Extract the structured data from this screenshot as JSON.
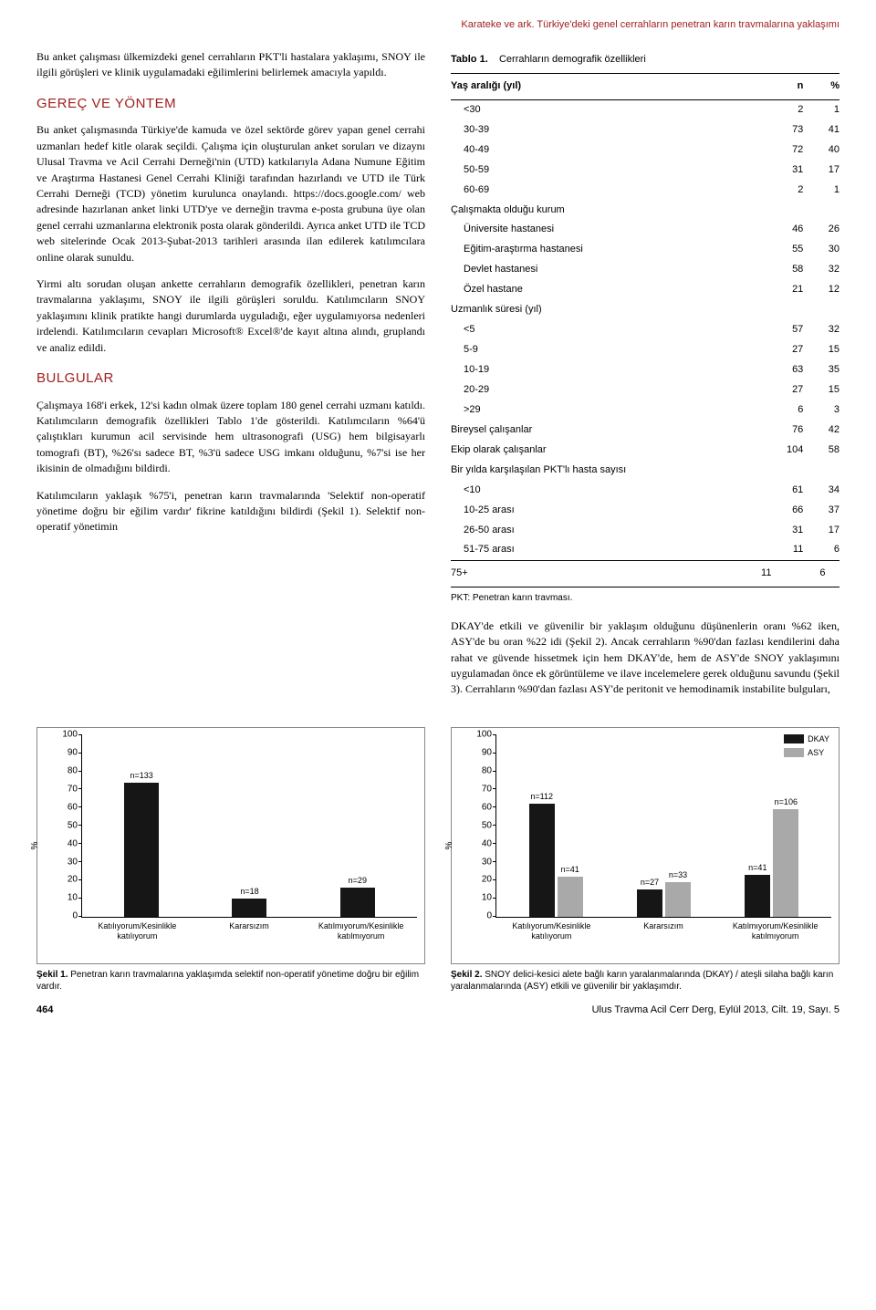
{
  "running_head": "Karateke ve ark. Türkiye'deki genel cerrahların penetran karın travmalarına yaklaşımı",
  "left": {
    "p1": "Bu anket çalışması ülkemizdeki genel cerrahların PKT'li hastalara yaklaşımı, SNOY ile ilgili görüşleri ve klinik uygulamadaki eğilimlerini belirlemek amacıyla yapıldı.",
    "h1": "GEREÇ VE YÖNTEM",
    "p2": "Bu anket çalışmasında Türkiye'de kamuda ve özel sektörde görev yapan genel cerrahi uzmanları hedef kitle olarak seçildi. Çalışma için oluşturulan anket soruları ve dizaynı Ulusal Travma ve Acil Cerrahi Derneği'nin (UTD) katkılarıyla Adana Numune Eğitim ve Araştırma Hastanesi Genel Cerrahi Kliniği tarafından hazırlandı ve UTD ile Türk Cerrahi Derneği (TCD) yönetim kurulunca onaylandı. https://docs.google.com/ web adresinde hazırlanan anket linki UTD'ye ve derneğin travma e-posta grubuna üye olan genel cerrahi uzmanlarına elektronik posta olarak gönderildi. Ayrıca anket UTD ile TCD web sitelerinde Ocak 2013-Şubat-2013 tarihleri arasında ilan edilerek katılımcılara online olarak sunuldu.",
    "p3": "Yirmi altı sorudan oluşan ankette cerrahların demografik özellikleri, penetran karın travmalarına yaklaşımı, SNOY ile ilgili görüşleri soruldu. Katılımcıların SNOY yaklaşımını klinik pratikte hangi durumlarda uyguladığı, eğer uygulamıyorsa nedenleri irdelendi. Katılımcıların cevapları Microsoft® Excel®'de kayıt altına alındı, gruplandı ve analiz edildi.",
    "h2": "BULGULAR",
    "p4": "Çalışmaya 168'i erkek, 12'si kadın olmak üzere toplam 180 genel cerrahi uzmanı katıldı. Katılımcıların demografik özellikleri Tablo 1'de gösterildi. Katılımcıların %64'ü çalıştıkları kurumun acil servisinde hem ultrasonografi (USG) hem bilgisayarlı tomografi (BT), %26'sı sadece BT, %3'ü sadece USG imkanı olduğunu, %7'si ise her ikisinin de olmadığını bildirdi.",
    "p5": "Katılımcıların yaklaşık %75'i, penetran karın travmalarında 'Selektif non-operatif yönetime doğru bir eğilim vardır' fikrine katıldığını bildirdi (Şekil 1). Selektif non-operatif yönetimin"
  },
  "table": {
    "label": "Tablo 1.",
    "title": "Cerrahların demografik özellikleri",
    "head_c1": "Yaş aralığı (yıl)",
    "head_c2": "n",
    "head_c3": "%",
    "rows": [
      {
        "label": "<30",
        "indent": true,
        "n": "2",
        "p": "1"
      },
      {
        "label": "30-39",
        "indent": true,
        "n": "73",
        "p": "41"
      },
      {
        "label": "40-49",
        "indent": true,
        "n": "72",
        "p": "40"
      },
      {
        "label": "50-59",
        "indent": true,
        "n": "31",
        "p": "17"
      },
      {
        "label": "60-69",
        "indent": true,
        "n": "2",
        "p": "1"
      },
      {
        "label": "Çalışmakta olduğu kurum",
        "indent": false,
        "n": "",
        "p": ""
      },
      {
        "label": "Üniversite hastanesi",
        "indent": true,
        "n": "46",
        "p": "26"
      },
      {
        "label": "Eğitim-araştırma hastanesi",
        "indent": true,
        "n": "55",
        "p": "30"
      },
      {
        "label": "Devlet hastanesi",
        "indent": true,
        "n": "58",
        "p": "32"
      },
      {
        "label": "Özel hastane",
        "indent": true,
        "n": "21",
        "p": "12"
      },
      {
        "label": "Uzmanlık süresi (yıl)",
        "indent": false,
        "n": "",
        "p": ""
      },
      {
        "label": "<5",
        "indent": true,
        "n": "57",
        "p": "32"
      },
      {
        "label": "5-9",
        "indent": true,
        "n": "27",
        "p": "15"
      },
      {
        "label": "10-19",
        "indent": true,
        "n": "63",
        "p": "35"
      },
      {
        "label": "20-29",
        "indent": true,
        "n": "27",
        "p": "15"
      },
      {
        "label": ">29",
        "indent": true,
        "n": "6",
        "p": "3"
      },
      {
        "label": "Bireysel çalışanlar",
        "indent": false,
        "n": "76",
        "p": "42"
      },
      {
        "label": "Ekip olarak çalışanlar",
        "indent": false,
        "n": "104",
        "p": "58"
      },
      {
        "label": "Bir yılda karşılaşılan PKT'lı hasta sayısı",
        "indent": false,
        "n": "",
        "p": ""
      },
      {
        "label": "<10",
        "indent": true,
        "n": "61",
        "p": "34"
      },
      {
        "label": "10-25 arası",
        "indent": true,
        "n": "66",
        "p": "37"
      },
      {
        "label": "26-50 arası",
        "indent": true,
        "n": "31",
        "p": "17"
      },
      {
        "label": "51-75 arası",
        "indent": true,
        "n": "11",
        "p": "6"
      }
    ],
    "last_row": {
      "label": "75+",
      "n": "11",
      "p": "6"
    },
    "foot": "PKT: Penetran karın travması."
  },
  "right_para": "DKAY'de etkili ve güvenilir bir yaklaşım olduğunu düşünenlerin oranı %62 iken, ASY'de bu oran %22 idi (Şekil 2). Ancak cerrahların %90'dan fazlası kendilerini daha rahat ve güvende hissetmek için hem DKAY'de, hem de ASY'de SNOY yaklaşımını uygulamadan önce ek görüntüleme ve ilave incelemelere gerek olduğunu savundu (Şekil 3). Cerrahların %90'dan fazlası ASY'de peritonit ve hemodinamik instabilite bulguları,",
  "chart1": {
    "type": "bar",
    "ylabel": "%",
    "ylim": [
      0,
      100
    ],
    "ytick_step": 10,
    "bar_color": "#161616",
    "background_color": "#ffffff",
    "border_color": "#888888",
    "categories": [
      "Katılıyorum/Kesinlikle\nkatılıyorum",
      "Kararsızım",
      "Katılmıyorum/Kesinlikle\nkatılmıyorum"
    ],
    "values": [
      74,
      10,
      16
    ],
    "value_labels": [
      "n=133",
      "n=18",
      "n=29"
    ],
    "caption_b": "Şekil 1.",
    "caption": " Penetran karın travmalarına yaklaşımda selektif non-operatif yönetime doğru bir eğilim vardır."
  },
  "chart2": {
    "type": "grouped-bar",
    "ylabel": "%",
    "ylim": [
      0,
      100
    ],
    "ytick_step": 10,
    "background_color": "#ffffff",
    "border_color": "#888888",
    "series": [
      {
        "name": "DKAY",
        "color": "#161616"
      },
      {
        "name": "ASY",
        "color": "#a9a9a9"
      }
    ],
    "categories": [
      "Katılıyorum/Kesinlikle\nkatılıyorum",
      "Kararsızım",
      "Katılmıyorum/Kesinlikle\nkatılmıyorum"
    ],
    "values": [
      [
        62,
        22
      ],
      [
        15,
        19
      ],
      [
        23,
        59
      ]
    ],
    "value_labels": [
      [
        "n=112",
        "n=41"
      ],
      [
        "n=27",
        "n=33"
      ],
      [
        "n=41",
        "n=106"
      ]
    ],
    "caption_b": "Şekil 2.",
    "caption": " SNOY delici-kesici alete bağlı karın yaralanmalarında (DKAY) / ateşli silaha bağlı karın yaralanmalarında (ASY) etkili ve güvenilir bir yaklaşımdır."
  },
  "footer": {
    "page": "464",
    "journal": "Ulus Travma Acil Cerr Derg, Eylül 2013, Cilt. 19, Sayı. 5"
  }
}
